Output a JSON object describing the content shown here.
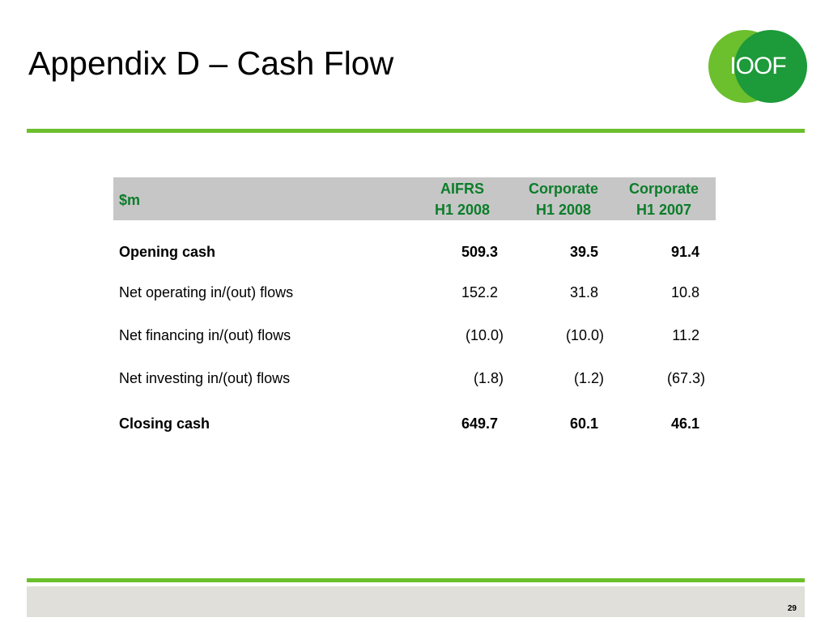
{
  "slide": {
    "title": "Appendix D – Cash Flow",
    "page_number": "29",
    "logo_text": "IOOF"
  },
  "colors": {
    "accent_green": "#6cbf2d",
    "header_text_green": "#0b7d2a",
    "header_bg": "#c6c6c6",
    "footer_bg": "#e0dfd9",
    "logo_light_green": "#6cbf2d",
    "logo_dark_green": "#1d9a3a"
  },
  "table": {
    "unit_label": "$m",
    "columns": [
      {
        "line1": "AIFRS",
        "line2": "H1 2008"
      },
      {
        "line1": "Corporate",
        "line2": "H1 2008"
      },
      {
        "line1": "Corporate",
        "line2": "H1 2007"
      }
    ],
    "rows": [
      {
        "label": "Opening cash",
        "bold": true,
        "values": [
          "509.3",
          "39.5",
          "91.4"
        ]
      },
      {
        "label": "Net operating in/(out) flows",
        "bold": false,
        "values": [
          "152.2",
          "31.8",
          "10.8"
        ]
      },
      {
        "label": "Net financing in/(out) flows",
        "bold": false,
        "values": [
          "(10.0)",
          "(10.0)",
          "11.2"
        ]
      },
      {
        "label": "Net investing in/(out) flows",
        "bold": false,
        "values": [
          "(1.8)",
          "(1.2)",
          "(67.3)"
        ]
      },
      {
        "label": "Closing cash",
        "bold": true,
        "values": [
          "649.7",
          "60.1",
          "46.1"
        ]
      }
    ]
  }
}
